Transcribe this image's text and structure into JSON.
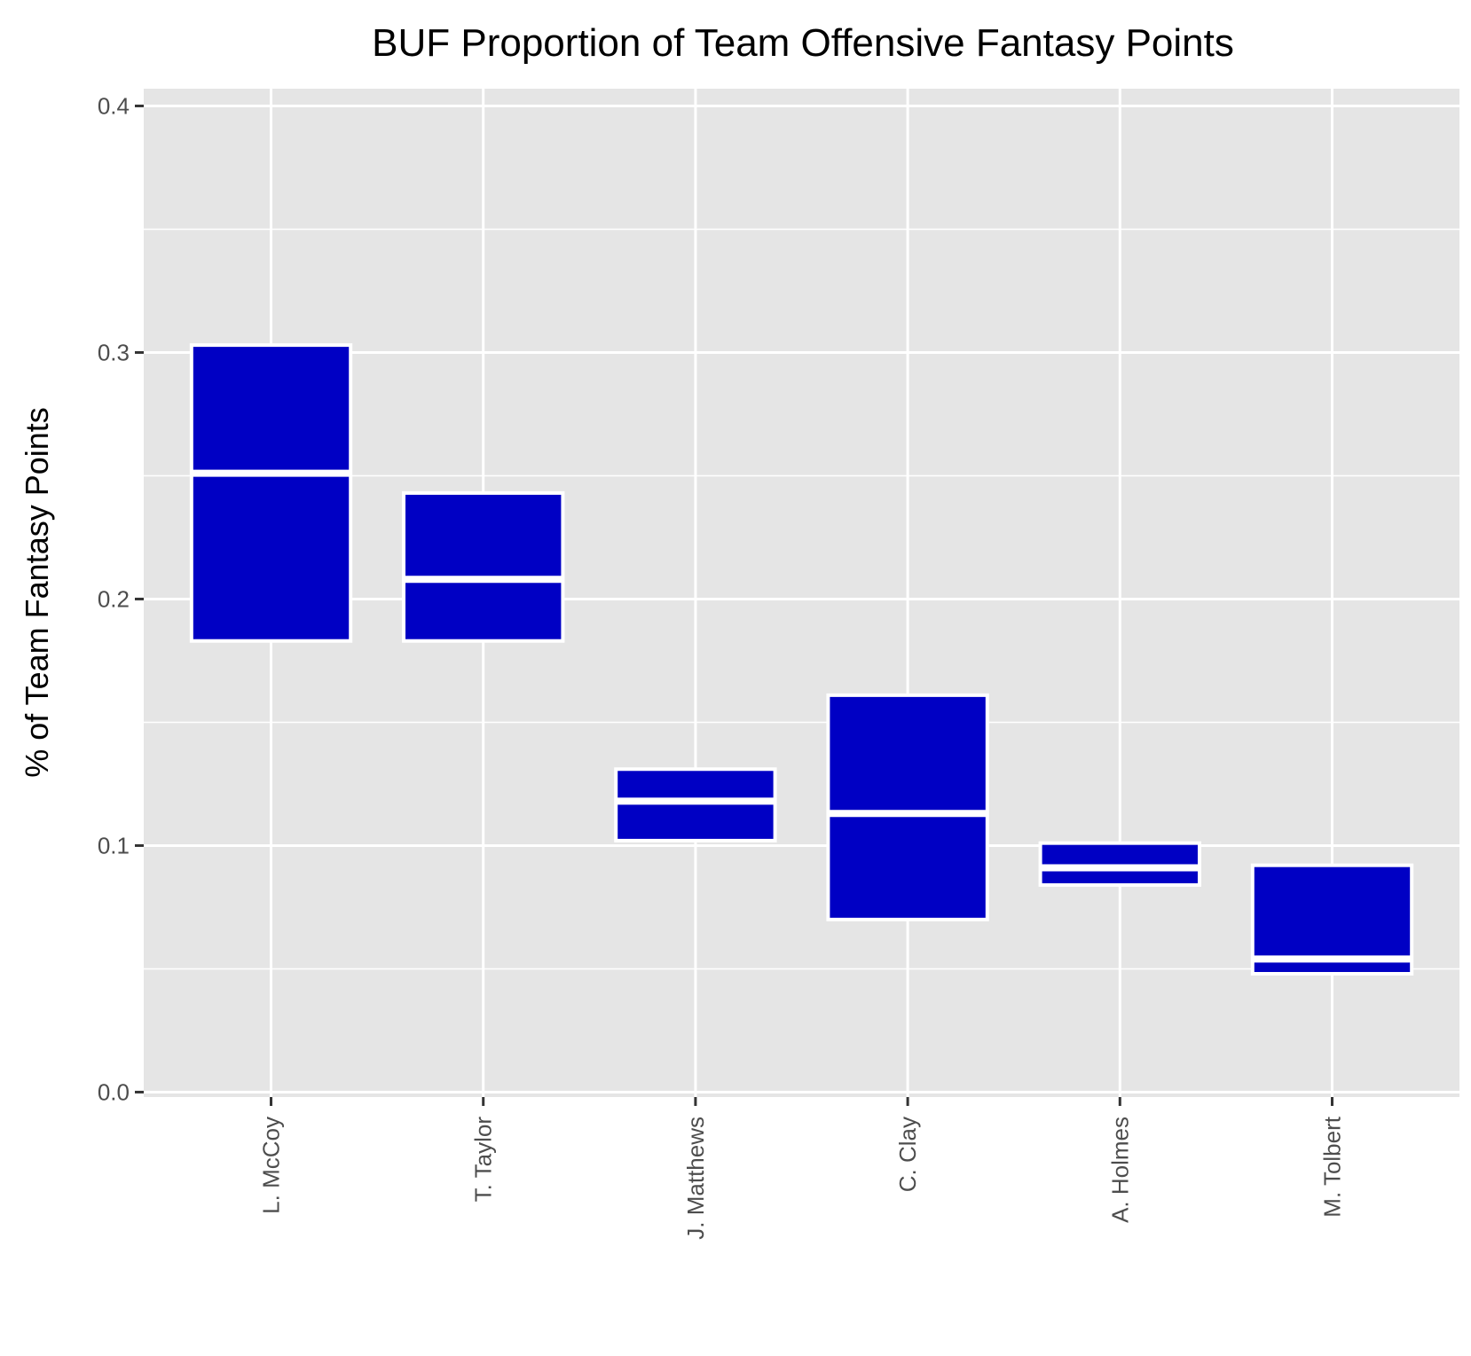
{
  "chart_data": {
    "type": "boxplot",
    "title": "BUF Proportion of Team Offensive Fantasy Points",
    "xlabel": "",
    "ylabel": "% of Team Fantasy Points",
    "ylim": [
      -0.002,
      0.407
    ],
    "yticks": [
      0.0,
      0.1,
      0.2,
      0.3,
      0.4
    ],
    "ytick_labels": [
      "0.0",
      "0.1",
      "0.2",
      "0.3",
      "0.4"
    ],
    "grid": true,
    "fill_color": "#0000c4",
    "panel_color": "#e5e5e5",
    "categories": [
      "L. McCoy",
      "T. Taylor",
      "J. Matthews",
      "C. Clay",
      "A. Holmes",
      "M. Tolbert"
    ],
    "boxes": [
      {
        "player": "L. McCoy",
        "q1": 0.183,
        "median": 0.251,
        "q3": 0.303
      },
      {
        "player": "T. Taylor",
        "q1": 0.183,
        "median": 0.208,
        "q3": 0.243
      },
      {
        "player": "J. Matthews",
        "q1": 0.102,
        "median": 0.118,
        "q3": 0.131
      },
      {
        "player": "C. Clay",
        "q1": 0.07,
        "median": 0.113,
        "q3": 0.161
      },
      {
        "player": "A. Holmes",
        "q1": 0.084,
        "median": 0.091,
        "q3": 0.101
      },
      {
        "player": "M. Tolbert",
        "q1": 0.048,
        "median": 0.054,
        "q3": 0.092
      }
    ]
  }
}
